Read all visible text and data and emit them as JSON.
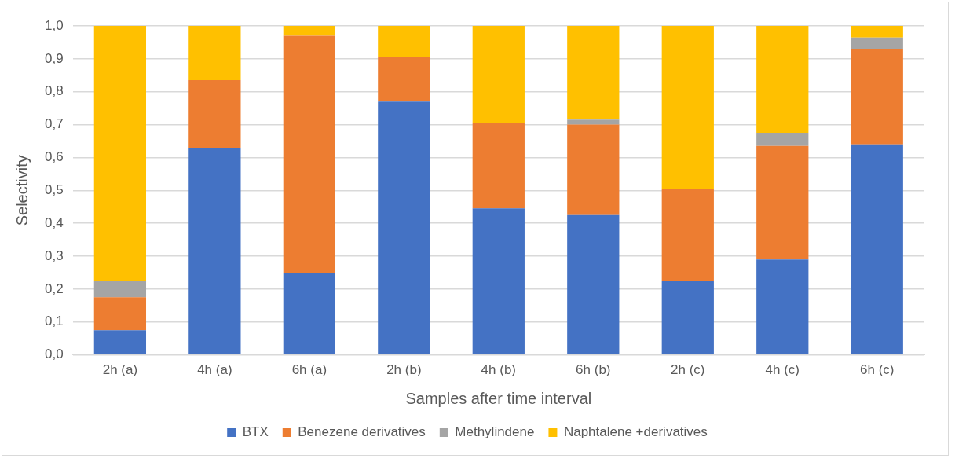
{
  "chart_data": {
    "type": "bar",
    "stacked": true,
    "xlabel": "Samples after time interval",
    "ylabel": "Selectivity",
    "categories": [
      "2h (a)",
      "4h (a)",
      "6h (a)",
      "2h (b)",
      "4h (b)",
      "6h (b)",
      "2h (c)",
      "4h (c)",
      "6h (c)"
    ],
    "series": [
      {
        "name": "BTX",
        "color": "#4472c4",
        "values": [
          0.075,
          0.63,
          0.25,
          0.77,
          0.445,
          0.425,
          0.225,
          0.29,
          0.64
        ]
      },
      {
        "name": "Benezene derivatives",
        "color": "#ed7d31",
        "values": [
          0.1,
          0.205,
          0.72,
          0.135,
          0.26,
          0.275,
          0.28,
          0.345,
          0.29
        ]
      },
      {
        "name": "Methylindene",
        "color": "#a5a5a5",
        "values": [
          0.05,
          0,
          0,
          0,
          0,
          0.015,
          0,
          0.04,
          0.035
        ]
      },
      {
        "name": "Naphtalene +derivatives",
        "color": "#ffc000",
        "values": [
          0.775,
          0.165,
          0.03,
          0.095,
          0.295,
          0.285,
          0.495,
          0.325,
          0.035
        ]
      }
    ],
    "ylim": [
      0,
      1
    ],
    "yticks": [
      {
        "value": 0,
        "label": "0,0"
      },
      {
        "value": 0.1,
        "label": "0,1"
      },
      {
        "value": 0.2,
        "label": "0,2"
      },
      {
        "value": 0.3,
        "label": "0,3"
      },
      {
        "value": 0.4,
        "label": "0,4"
      },
      {
        "value": 0.5,
        "label": "0,5"
      },
      {
        "value": 0.6,
        "label": "0,6"
      },
      {
        "value": 0.7,
        "label": "0,7"
      },
      {
        "value": 0.8,
        "label": "0,8"
      },
      {
        "value": 0.9,
        "label": "0,9"
      },
      {
        "value": 1,
        "label": "1,0"
      }
    ],
    "grid": "y",
    "legend": "bottom"
  }
}
